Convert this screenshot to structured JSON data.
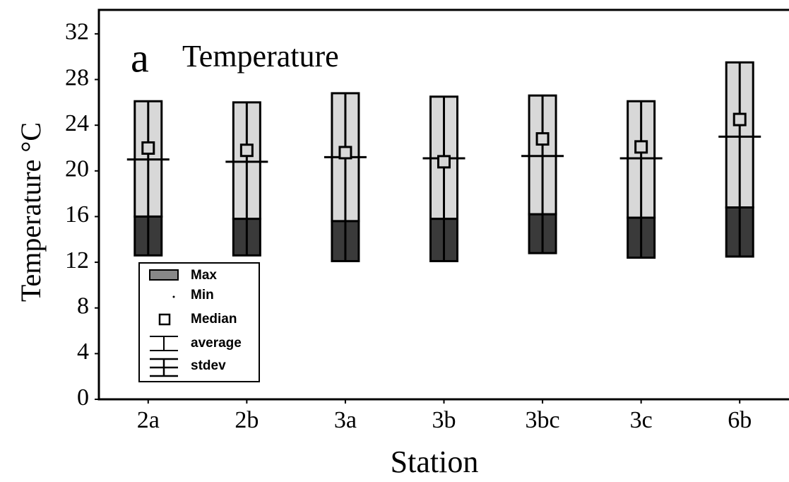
{
  "chart_data": {
    "type": "range-box",
    "title_letter": "a",
    "title": "Temperature",
    "xlabel": "Station",
    "ylabel": "Temperature °C",
    "categories": [
      "2a",
      "2b",
      "3a",
      "3b",
      "3bc",
      "3c",
      "6b"
    ],
    "series": [
      {
        "name": "Max",
        "values": [
          26.1,
          26.0,
          26.8,
          26.5,
          26.6,
          26.1,
          29.5
        ]
      },
      {
        "name": "Min",
        "values": [
          12.6,
          12.6,
          12.1,
          12.1,
          12.8,
          12.4,
          12.5
        ]
      },
      {
        "name": "Median",
        "values": [
          22.0,
          21.8,
          21.6,
          20.8,
          22.8,
          22.1,
          24.5
        ]
      },
      {
        "name": "average",
        "values": [
          21.0,
          20.8,
          21.2,
          21.1,
          21.3,
          21.1,
          23.0
        ]
      },
      {
        "name": "stdev",
        "values": [
          5.0,
          5.0,
          5.6,
          5.3,
          5.1,
          5.2,
          6.2
        ]
      }
    ],
    "ylim": [
      0,
      34
    ],
    "yticks": [
      0,
      4,
      8,
      12,
      16,
      20,
      24,
      28,
      32
    ]
  }
}
